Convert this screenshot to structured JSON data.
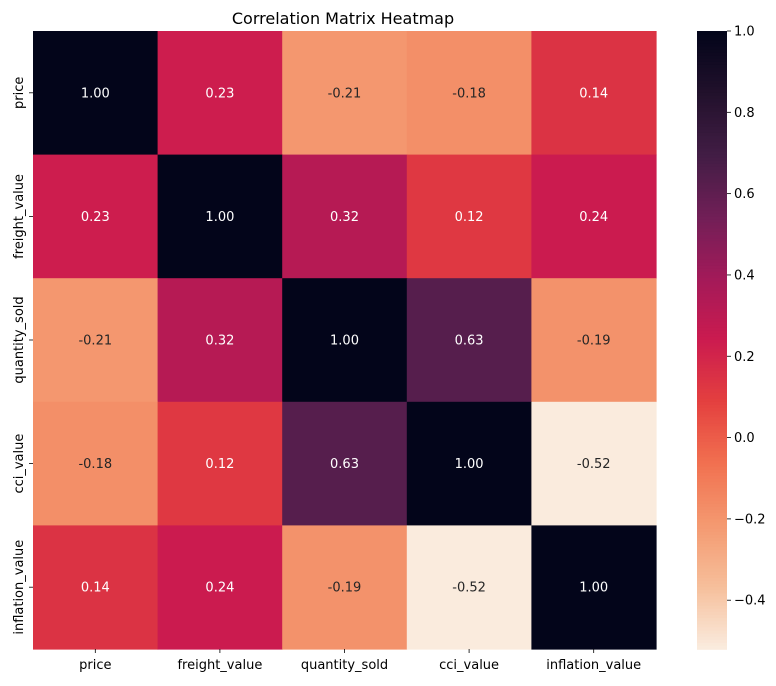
{
  "chart_data": {
    "type": "heatmap",
    "title": "Correlation Matrix Heatmap",
    "x_labels": [
      "price",
      "freight_value",
      "quantity_sold",
      "cci_value",
      "inflation_value"
    ],
    "y_labels": [
      "price",
      "freight_value",
      "quantity_sold",
      "cci_value",
      "inflation_value"
    ],
    "values": [
      [
        1.0,
        0.23,
        -0.21,
        -0.18,
        0.14
      ],
      [
        0.23,
        1.0,
        0.32,
        0.12,
        0.24
      ],
      [
        -0.21,
        0.32,
        1.0,
        0.63,
        -0.19
      ],
      [
        -0.18,
        0.12,
        0.63,
        1.0,
        -0.52
      ],
      [
        0.14,
        0.24,
        -0.19,
        -0.52,
        1.0
      ]
    ],
    "annotation_format": "0.00",
    "colorbar": {
      "range": [
        -0.52,
        1.0
      ],
      "ticks": [
        -0.4,
        -0.2,
        0.0,
        0.2,
        0.4,
        0.6,
        0.8,
        1.0
      ],
      "tick_labels": [
        "−0.4",
        "−0.2",
        "0.0",
        "0.2",
        "0.4",
        "0.6",
        "0.8",
        "1.0"
      ]
    },
    "colormap": "rocket_r",
    "grid": false
  }
}
